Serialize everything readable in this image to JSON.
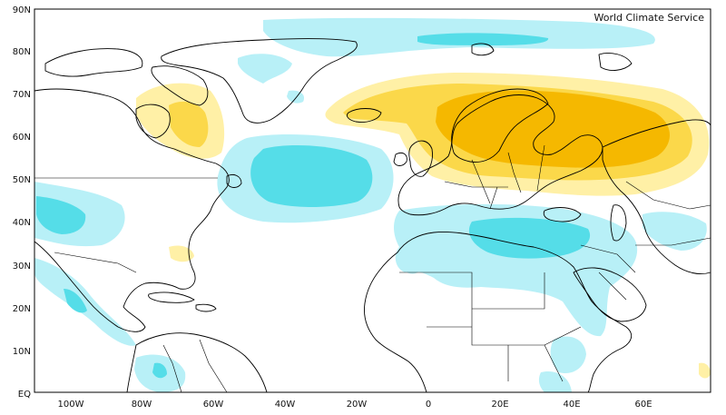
{
  "credit": "World Climate Service",
  "lat_labels": [
    "90N",
    "80N",
    "70N",
    "60N",
    "50N",
    "40N",
    "30N",
    "20N",
    "10N",
    "EQ"
  ],
  "lon_labels": [
    "100W",
    "80W",
    "60W",
    "40W",
    "20W",
    "0",
    "20E",
    "40E",
    "60E"
  ],
  "colors": {
    "warm_light": "#fff0a6",
    "warm_mid": "#fbd84a",
    "warm_strong": "#f5b800",
    "cool_light": "#b8f0f7",
    "cool_mid": "#55dde8",
    "land_line": "#000000",
    "frame": "#000000"
  }
}
